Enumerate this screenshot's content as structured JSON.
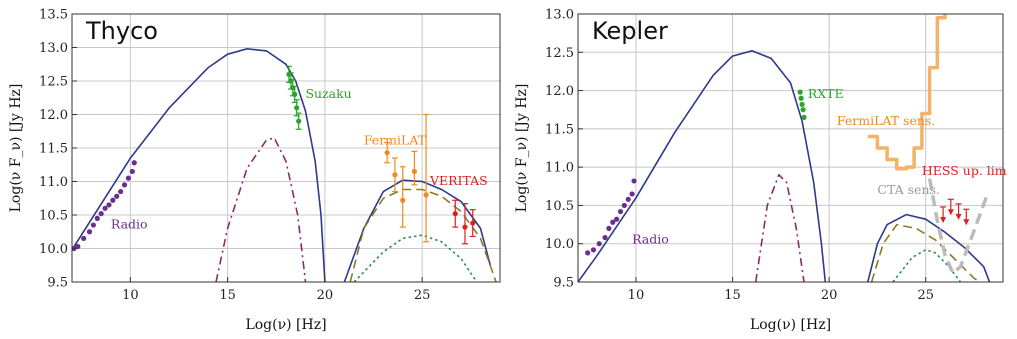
{
  "chart_data": [
    {
      "type": "line",
      "title": "Thyco",
      "xlabel": "Log(ν)  [Hz]",
      "ylabel": "Log(ν F_ν)  [Jy Hz]",
      "xlim": [
        7,
        29
      ],
      "ylim": [
        9.5,
        13.5
      ],
      "xticks": [
        10,
        15,
        20,
        25
      ],
      "yticks": [
        9.5,
        10.0,
        10.5,
        11.0,
        11.5,
        12.0,
        12.5,
        13.0,
        13.5
      ],
      "grid": true,
      "colors": {
        "total": "#2e3a8c",
        "sync_secondary": "#8b2a6e",
        "ic_brown": "#8b7a2a",
        "ic_green": "#2e8b57",
        "radio": "#6a2e8c",
        "suzaku": "#2aa52a",
        "fermi": "#f08a1c",
        "veritas": "#dd1f1f"
      },
      "series": [
        {
          "style": "solid",
          "color": "#2e3a8c",
          "points": [
            [
              7,
              9.98
            ],
            [
              10,
              11.35
            ],
            [
              12,
              12.1
            ],
            [
              14,
              12.7
            ],
            [
              15,
              12.9
            ],
            [
              16,
              12.98
            ],
            [
              17,
              12.95
            ],
            [
              18,
              12.75
            ],
            [
              18.5,
              12.5
            ],
            [
              19,
              12.05
            ],
            [
              19.5,
              11.3
            ],
            [
              19.8,
              10.5
            ],
            [
              20,
              9.5
            ]
          ]
        },
        {
          "style": "solid",
          "color": "#2e3a8c",
          "points": [
            [
              21,
              9.5
            ],
            [
              22,
              10.3
            ],
            [
              23,
              10.85
            ],
            [
              24,
              11.02
            ],
            [
              25,
              11.0
            ],
            [
              26,
              10.88
            ],
            [
              27,
              10.7
            ],
            [
              28,
              10.3
            ],
            [
              28.5,
              9.75
            ]
          ]
        },
        {
          "style": "dashdot",
          "color": "#8b2a6e",
          "points": [
            [
              14.4,
              9.5
            ],
            [
              15,
              10.3
            ],
            [
              16,
              11.2
            ],
            [
              17,
              11.62
            ],
            [
              17.4,
              11.65
            ],
            [
              18,
              11.3
            ],
            [
              18.6,
              10.5
            ],
            [
              19,
              9.5
            ]
          ]
        },
        {
          "style": "dashed",
          "color": "#8b7a2a",
          "points": [
            [
              21.3,
              9.5
            ],
            [
              22,
              10.3
            ],
            [
              23,
              10.75
            ],
            [
              24,
              10.88
            ],
            [
              25,
              10.88
            ],
            [
              26,
              10.78
            ],
            [
              27,
              10.55
            ],
            [
              28,
              10.15
            ],
            [
              28.8,
              9.5
            ]
          ]
        },
        {
          "style": "dotted",
          "color": "#2e8b57",
          "points": [
            [
              21.5,
              9.5
            ],
            [
              23,
              9.95
            ],
            [
              24,
              10.15
            ],
            [
              25,
              10.2
            ],
            [
              26,
              10.1
            ],
            [
              27,
              9.85
            ],
            [
              27.8,
              9.5
            ]
          ]
        }
      ],
      "data_groups": [
        {
          "name": "Radio",
          "color": "#6a2e8c",
          "points": [
            [
              7.1,
              10.0
            ],
            [
              7.3,
              10.03
            ],
            [
              7.6,
              10.15
            ],
            [
              7.9,
              10.25
            ],
            [
              8.1,
              10.35
            ],
            [
              8.3,
              10.45
            ],
            [
              8.5,
              10.52
            ],
            [
              8.7,
              10.6
            ],
            [
              8.9,
              10.65
            ],
            [
              9.1,
              10.72
            ],
            [
              9.3,
              10.78
            ],
            [
              9.5,
              10.85
            ],
            [
              9.7,
              10.95
            ],
            [
              9.9,
              11.05
            ],
            [
              10.1,
              11.15
            ],
            [
              10.2,
              11.28
            ]
          ]
        },
        {
          "name": "Suzaku",
          "color": "#2aa52a",
          "points": [
            [
              18.15,
              12.6
            ],
            [
              18.25,
              12.5
            ],
            [
              18.35,
              12.4
            ],
            [
              18.45,
              12.3
            ],
            [
              18.55,
              12.1
            ],
            [
              18.65,
              11.9
            ]
          ],
          "err": 0.12
        },
        {
          "name": "FermiLAT",
          "color": "#f08a1c",
          "points": [
            [
              23.2,
              11.43
            ],
            [
              23.6,
              11.1
            ],
            [
              24.0,
              10.72
            ],
            [
              24.6,
              11.15
            ],
            [
              25.2,
              10.8
            ]
          ],
          "errs": [
            [
              0.15,
              0.15
            ],
            [
              0.25,
              0.25
            ],
            [
              0.4,
              0.5
            ],
            [
              0.2,
              0.3
            ],
            [
              0.7,
              1.2
            ]
          ]
        },
        {
          "name": "VERITAS",
          "color": "#dd1f1f",
          "points": [
            [
              26.7,
              10.52
            ],
            [
              27.2,
              10.32
            ],
            [
              27.6,
              10.38
            ]
          ],
          "errs": [
            [
              0.2,
              0.2
            ],
            [
              0.25,
              0.35
            ],
            [
              0.2,
              0.2
            ]
          ]
        }
      ],
      "annotations": [
        {
          "text": "Suzaku",
          "color": "#2aa52a",
          "x": 19.0,
          "y": 12.25
        },
        {
          "text": "FermiLAT",
          "color": "#f08a1c",
          "x": 22.0,
          "y": 11.55
        },
        {
          "text": "VERITAS",
          "color": "#dd1f1f",
          "x": 25.4,
          "y": 10.95
        },
        {
          "text": "Radio",
          "color": "#6a2e8c",
          "x": 9.0,
          "y": 10.3
        }
      ]
    },
    {
      "type": "line",
      "title": "Kepler",
      "xlabel": "Log(ν)  [Hz]",
      "ylabel": "Log(ν F_ν)  [Jy Hz]",
      "xlim": [
        7,
        29
      ],
      "ylim": [
        9.5,
        13.0
      ],
      "xticks": [
        10,
        15,
        20,
        25
      ],
      "yticks": [
        9.5,
        10.0,
        10.5,
        11.0,
        11.5,
        12.0,
        12.5,
        13.0
      ],
      "grid": true,
      "colors": {
        "total": "#2e3a8c",
        "sync_secondary": "#8b2a6e",
        "ic_brown": "#8b7a2a",
        "ic_green": "#2e8b57",
        "radio": "#6a2e8c",
        "rxte": "#2aa52a",
        "fermi_sens": "#f4b266",
        "hess": "#dd1f1f",
        "cta": "#bbbbbb"
      },
      "series": [
        {
          "style": "solid",
          "color": "#2e3a8c",
          "points": [
            [
              7,
              9.5
            ],
            [
              8,
              9.85
            ],
            [
              10,
              10.6
            ],
            [
              12,
              11.45
            ],
            [
              14,
              12.2
            ],
            [
              15,
              12.45
            ],
            [
              16,
              12.52
            ],
            [
              17,
              12.42
            ],
            [
              18,
              12.1
            ],
            [
              18.6,
              11.6
            ],
            [
              19.2,
              10.8
            ],
            [
              19.6,
              10.0
            ],
            [
              19.8,
              9.5
            ]
          ]
        },
        {
          "style": "solid",
          "color": "#2e3a8c",
          "points": [
            [
              22,
              9.5
            ],
            [
              22.5,
              10.0
            ],
            [
              23,
              10.25
            ],
            [
              24,
              10.38
            ],
            [
              25,
              10.32
            ],
            [
              26,
              10.15
            ],
            [
              27,
              9.95
            ],
            [
              28,
              9.7
            ],
            [
              28.3,
              9.5
            ]
          ]
        },
        {
          "style": "dashdot",
          "color": "#8b2a6e",
          "points": [
            [
              16.2,
              9.5
            ],
            [
              16.8,
              10.5
            ],
            [
              17.4,
              10.9
            ],
            [
              17.8,
              10.8
            ],
            [
              18.3,
              10.2
            ],
            [
              18.7,
              9.5
            ]
          ]
        },
        {
          "style": "dashed",
          "color": "#8b7a2a",
          "points": [
            [
              22.2,
              9.5
            ],
            [
              22.8,
              10.0
            ],
            [
              23.5,
              10.25
            ],
            [
              24.5,
              10.2
            ],
            [
              25.5,
              10.05
            ],
            [
              26.5,
              9.8
            ],
            [
              27.5,
              9.55
            ],
            [
              27.8,
              9.5
            ]
          ]
        },
        {
          "style": "dotted",
          "color": "#2e8b57",
          "points": [
            [
              23.3,
              9.5
            ],
            [
              24.3,
              9.82
            ],
            [
              25,
              9.92
            ],
            [
              25.5,
              9.88
            ],
            [
              26.2,
              9.7
            ],
            [
              26.8,
              9.5
            ]
          ]
        },
        {
          "name": "FermiLAT sens.",
          "style": "step",
          "color": "#f4b266",
          "points": [
            [
              22.0,
              11.4
            ],
            [
              22.5,
              11.4
            ],
            [
              22.5,
              11.25
            ],
            [
              23.0,
              11.25
            ],
            [
              23.0,
              11.1
            ],
            [
              23.5,
              11.1
            ],
            [
              23.5,
              10.98
            ],
            [
              24.0,
              10.98
            ],
            [
              24.0,
              11.0
            ],
            [
              24.4,
              11.0
            ],
            [
              24.4,
              11.25
            ],
            [
              24.8,
              11.25
            ],
            [
              24.8,
              11.7
            ],
            [
              25.2,
              11.7
            ],
            [
              25.2,
              12.3
            ],
            [
              25.6,
              12.3
            ],
            [
              25.6,
              12.95
            ],
            [
              26.0,
              12.95
            ],
            [
              26.0,
              13.0
            ]
          ]
        },
        {
          "name": "CTA sens.",
          "style": "dashed-thick",
          "color": "#bbbbbb",
          "points": [
            [
              25.2,
              10.85
            ],
            [
              25.6,
              10.3
            ],
            [
              26.0,
              9.85
            ],
            [
              26.4,
              9.62
            ],
            [
              26.8,
              9.7
            ],
            [
              27.4,
              10.1
            ],
            [
              28.2,
              10.65
            ]
          ]
        }
      ],
      "data_groups": [
        {
          "name": "Radio",
          "color": "#6a2e8c",
          "points": [
            [
              7.5,
              9.88
            ],
            [
              7.8,
              9.92
            ],
            [
              8.1,
              10.0
            ],
            [
              8.4,
              10.08
            ],
            [
              8.6,
              10.2
            ],
            [
              8.8,
              10.28
            ],
            [
              9.0,
              10.32
            ],
            [
              9.2,
              10.42
            ],
            [
              9.4,
              10.5
            ],
            [
              9.6,
              10.58
            ],
            [
              9.8,
              10.65
            ],
            [
              9.9,
              10.82
            ]
          ]
        },
        {
          "name": "RXTE",
          "color": "#2aa52a",
          "points": [
            [
              18.5,
              11.98
            ],
            [
              18.55,
              11.9
            ],
            [
              18.6,
              11.82
            ],
            [
              18.65,
              11.75
            ],
            [
              18.7,
              11.65
            ]
          ]
        },
        {
          "name": "HESS up. lim",
          "color": "#dd1f1f",
          "points": [
            [
              25.9,
              10.48
            ],
            [
              26.3,
              10.58
            ],
            [
              26.7,
              10.52
            ],
            [
              27.1,
              10.45
            ]
          ]
        }
      ],
      "annotations": [
        {
          "text": "RXTE",
          "color": "#2aa52a",
          "x": 18.9,
          "y": 11.9
        },
        {
          "text": "FermiLAT sens.",
          "color": "#f08a1c",
          "x": 20.4,
          "y": 11.55
        },
        {
          "text": "HESS up. lim",
          "color": "#dd1f1f",
          "x": 24.8,
          "y": 10.9
        },
        {
          "text": "CTA sens.",
          "color": "#999999",
          "x": 22.5,
          "y": 10.65
        },
        {
          "text": "Radio",
          "color": "#6a2e8c",
          "x": 9.8,
          "y": 10.0
        }
      ]
    }
  ]
}
